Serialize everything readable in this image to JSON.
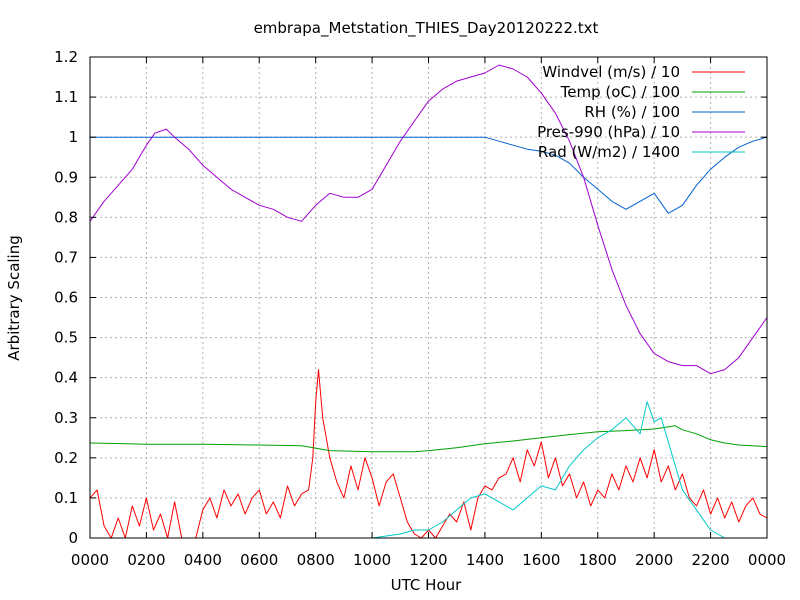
{
  "chart_data": {
    "type": "line",
    "title": "embrapa_Metstation_THIES_Day20120222.txt",
    "xlabel": "UTC Hour",
    "ylabel": "Arbitrary Scaling",
    "xlim": [
      0,
      24
    ],
    "ylim": [
      0,
      1.2
    ],
    "grid": true,
    "legend_position": "top-right",
    "x_ticks": [
      {
        "value": 0,
        "label": "0000"
      },
      {
        "value": 2,
        "label": "0200"
      },
      {
        "value": 4,
        "label": "0400"
      },
      {
        "value": 6,
        "label": "0600"
      },
      {
        "value": 8,
        "label": "0800"
      },
      {
        "value": 10,
        "label": "1000"
      },
      {
        "value": 12,
        "label": "1200"
      },
      {
        "value": 14,
        "label": "1400"
      },
      {
        "value": 16,
        "label": "1600"
      },
      {
        "value": 18,
        "label": "1800"
      },
      {
        "value": 20,
        "label": "2000"
      },
      {
        "value": 22,
        "label": "2200"
      },
      {
        "value": 24,
        "label": "0000"
      }
    ],
    "y_ticks": [
      {
        "value": 0,
        "label": "0"
      },
      {
        "value": 0.1,
        "label": "0.1"
      },
      {
        "value": 0.2,
        "label": "0.2"
      },
      {
        "value": 0.3,
        "label": "0.3"
      },
      {
        "value": 0.4,
        "label": "0.4"
      },
      {
        "value": 0.5,
        "label": "0.5"
      },
      {
        "value": 0.6,
        "label": "0.6"
      },
      {
        "value": 0.7,
        "label": "0.7"
      },
      {
        "value": 0.8,
        "label": "0.8"
      },
      {
        "value": 0.9,
        "label": "0.9"
      },
      {
        "value": 1,
        "label": "1"
      },
      {
        "value": 1.1,
        "label": "1.1"
      },
      {
        "value": 1.2,
        "label": "1.2"
      }
    ],
    "series": [
      {
        "name": "Windvel (m/s) / 10",
        "color": "#ff0000",
        "x": [
          0,
          0.25,
          0.5,
          0.75,
          1,
          1.25,
          1.5,
          1.75,
          2,
          2.25,
          2.5,
          2.75,
          3,
          3.25,
          3.5,
          3.75,
          4,
          4.25,
          4.5,
          4.75,
          5,
          5.25,
          5.5,
          5.75,
          6,
          6.25,
          6.5,
          6.75,
          7,
          7.25,
          7.5,
          7.75,
          7.9,
          8,
          8.1,
          8.25,
          8.5,
          8.75,
          9,
          9.25,
          9.5,
          9.75,
          10,
          10.25,
          10.5,
          10.75,
          11,
          11.25,
          11.5,
          11.75,
          12,
          12.25,
          12.5,
          12.75,
          13,
          13.25,
          13.5,
          13.75,
          14,
          14.25,
          14.5,
          14.75,
          15,
          15.25,
          15.5,
          15.75,
          16,
          16.25,
          16.5,
          16.75,
          17,
          17.25,
          17.5,
          17.75,
          18,
          18.25,
          18.5,
          18.75,
          19,
          19.25,
          19.5,
          19.75,
          20,
          20.25,
          20.5,
          20.75,
          21,
          21.25,
          21.5,
          21.75,
          22,
          22.25,
          22.5,
          22.75,
          23,
          23.25,
          23.5,
          23.75,
          24
        ],
        "values": [
          0.1,
          0.12,
          0.03,
          0,
          0.05,
          0,
          0.08,
          0.03,
          0.1,
          0.02,
          0.06,
          0,
          0.09,
          0,
          0,
          0,
          0.07,
          0.1,
          0.05,
          0.12,
          0.08,
          0.11,
          0.06,
          0.1,
          0.12,
          0.06,
          0.09,
          0.05,
          0.13,
          0.08,
          0.11,
          0.12,
          0.2,
          0.34,
          0.42,
          0.3,
          0.2,
          0.14,
          0.1,
          0.18,
          0.12,
          0.2,
          0.15,
          0.08,
          0.14,
          0.16,
          0.1,
          0.04,
          0.01,
          0,
          0.02,
          0,
          0.03,
          0.06,
          0.04,
          0.09,
          0.02,
          0.1,
          0.13,
          0.12,
          0.15,
          0.16,
          0.2,
          0.14,
          0.22,
          0.18,
          0.24,
          0.15,
          0.2,
          0.13,
          0.16,
          0.1,
          0.14,
          0.08,
          0.12,
          0.1,
          0.16,
          0.12,
          0.18,
          0.14,
          0.2,
          0.15,
          0.22,
          0.14,
          0.18,
          0.12,
          0.16,
          0.1,
          0.08,
          0.12,
          0.06,
          0.1,
          0.05,
          0.09,
          0.04,
          0.08,
          0.1,
          0.06,
          0.05
        ]
      },
      {
        "name": "Temp (oC) / 100",
        "color": "#00a000",
        "x": [
          0,
          2,
          4,
          6,
          7.5,
          8.5,
          10,
          11.5,
          12,
          13,
          14,
          15,
          16,
          17,
          18,
          19,
          20,
          20.75,
          21,
          21.5,
          22,
          22.5,
          23,
          24
        ],
        "values": [
          0.237,
          0.234,
          0.234,
          0.232,
          0.23,
          0.218,
          0.215,
          0.215,
          0.218,
          0.225,
          0.235,
          0.242,
          0.25,
          0.258,
          0.265,
          0.268,
          0.272,
          0.28,
          0.27,
          0.26,
          0.245,
          0.237,
          0.232,
          0.228
        ]
      },
      {
        "name": "RH (%) / 100",
        "color": "#0060d0",
        "x": [
          0,
          2,
          4,
          6,
          8,
          10,
          12,
          13,
          14,
          14.5,
          15,
          15.5,
          16,
          16.5,
          17,
          17.5,
          18,
          18.5,
          19,
          19.5,
          20,
          20.5,
          21,
          21.5,
          22,
          22.5,
          23,
          23.5,
          24
        ],
        "values": [
          1,
          1,
          1,
          1,
          1,
          1,
          1,
          1,
          1,
          0.99,
          0.98,
          0.97,
          0.965,
          0.955,
          0.935,
          0.9,
          0.87,
          0.84,
          0.82,
          0.84,
          0.86,
          0.81,
          0.83,
          0.88,
          0.92,
          0.95,
          0.975,
          0.99,
          1
        ]
      },
      {
        "name": "Pres-990 (hPa) / 10",
        "color": "#a000d0",
        "x": [
          0,
          0.5,
          1,
          1.5,
          2,
          2.3,
          2.7,
          3,
          3.5,
          4,
          4.5,
          5,
          5.5,
          6,
          6.5,
          7,
          7.5,
          8,
          8.5,
          9,
          9.5,
          10,
          10.5,
          11,
          11.5,
          12,
          12.5,
          13,
          13.5,
          14,
          14.5,
          15,
          15.5,
          16,
          16.5,
          17,
          17.5,
          18,
          18.5,
          19,
          19.5,
          20,
          20.5,
          21,
          21.5,
          22,
          22.5,
          23,
          23.5,
          24
        ],
        "values": [
          0.79,
          0.84,
          0.88,
          0.92,
          0.98,
          1.01,
          1.02,
          1.0,
          0.97,
          0.93,
          0.9,
          0.87,
          0.85,
          0.83,
          0.82,
          0.8,
          0.79,
          0.83,
          0.86,
          0.85,
          0.85,
          0.87,
          0.93,
          0.99,
          1.04,
          1.09,
          1.12,
          1.14,
          1.15,
          1.16,
          1.18,
          1.17,
          1.15,
          1.11,
          1.06,
          0.99,
          0.9,
          0.78,
          0.67,
          0.58,
          0.51,
          0.46,
          0.44,
          0.43,
          0.43,
          0.41,
          0.42,
          0.45,
          0.5,
          0.55
        ]
      },
      {
        "name": "Rad (W/m2) / 1400",
        "color": "#00c8c8",
        "x": [
          0,
          10,
          10.5,
          11,
          11.5,
          12,
          12.5,
          13,
          13.5,
          14,
          14.5,
          15,
          15.5,
          16,
          16.5,
          17,
          17.5,
          18,
          18.5,
          19,
          19.5,
          19.75,
          20,
          20.25,
          20.5,
          20.75,
          21,
          21.5,
          22,
          22.5,
          24
        ],
        "values": [
          0,
          0,
          0.005,
          0.01,
          0.02,
          0.02,
          0.04,
          0.07,
          0.1,
          0.11,
          0.09,
          0.07,
          0.1,
          0.13,
          0.12,
          0.18,
          0.22,
          0.25,
          0.27,
          0.3,
          0.26,
          0.34,
          0.29,
          0.3,
          0.24,
          0.18,
          0.12,
          0.07,
          0.02,
          0,
          0
        ]
      }
    ]
  }
}
